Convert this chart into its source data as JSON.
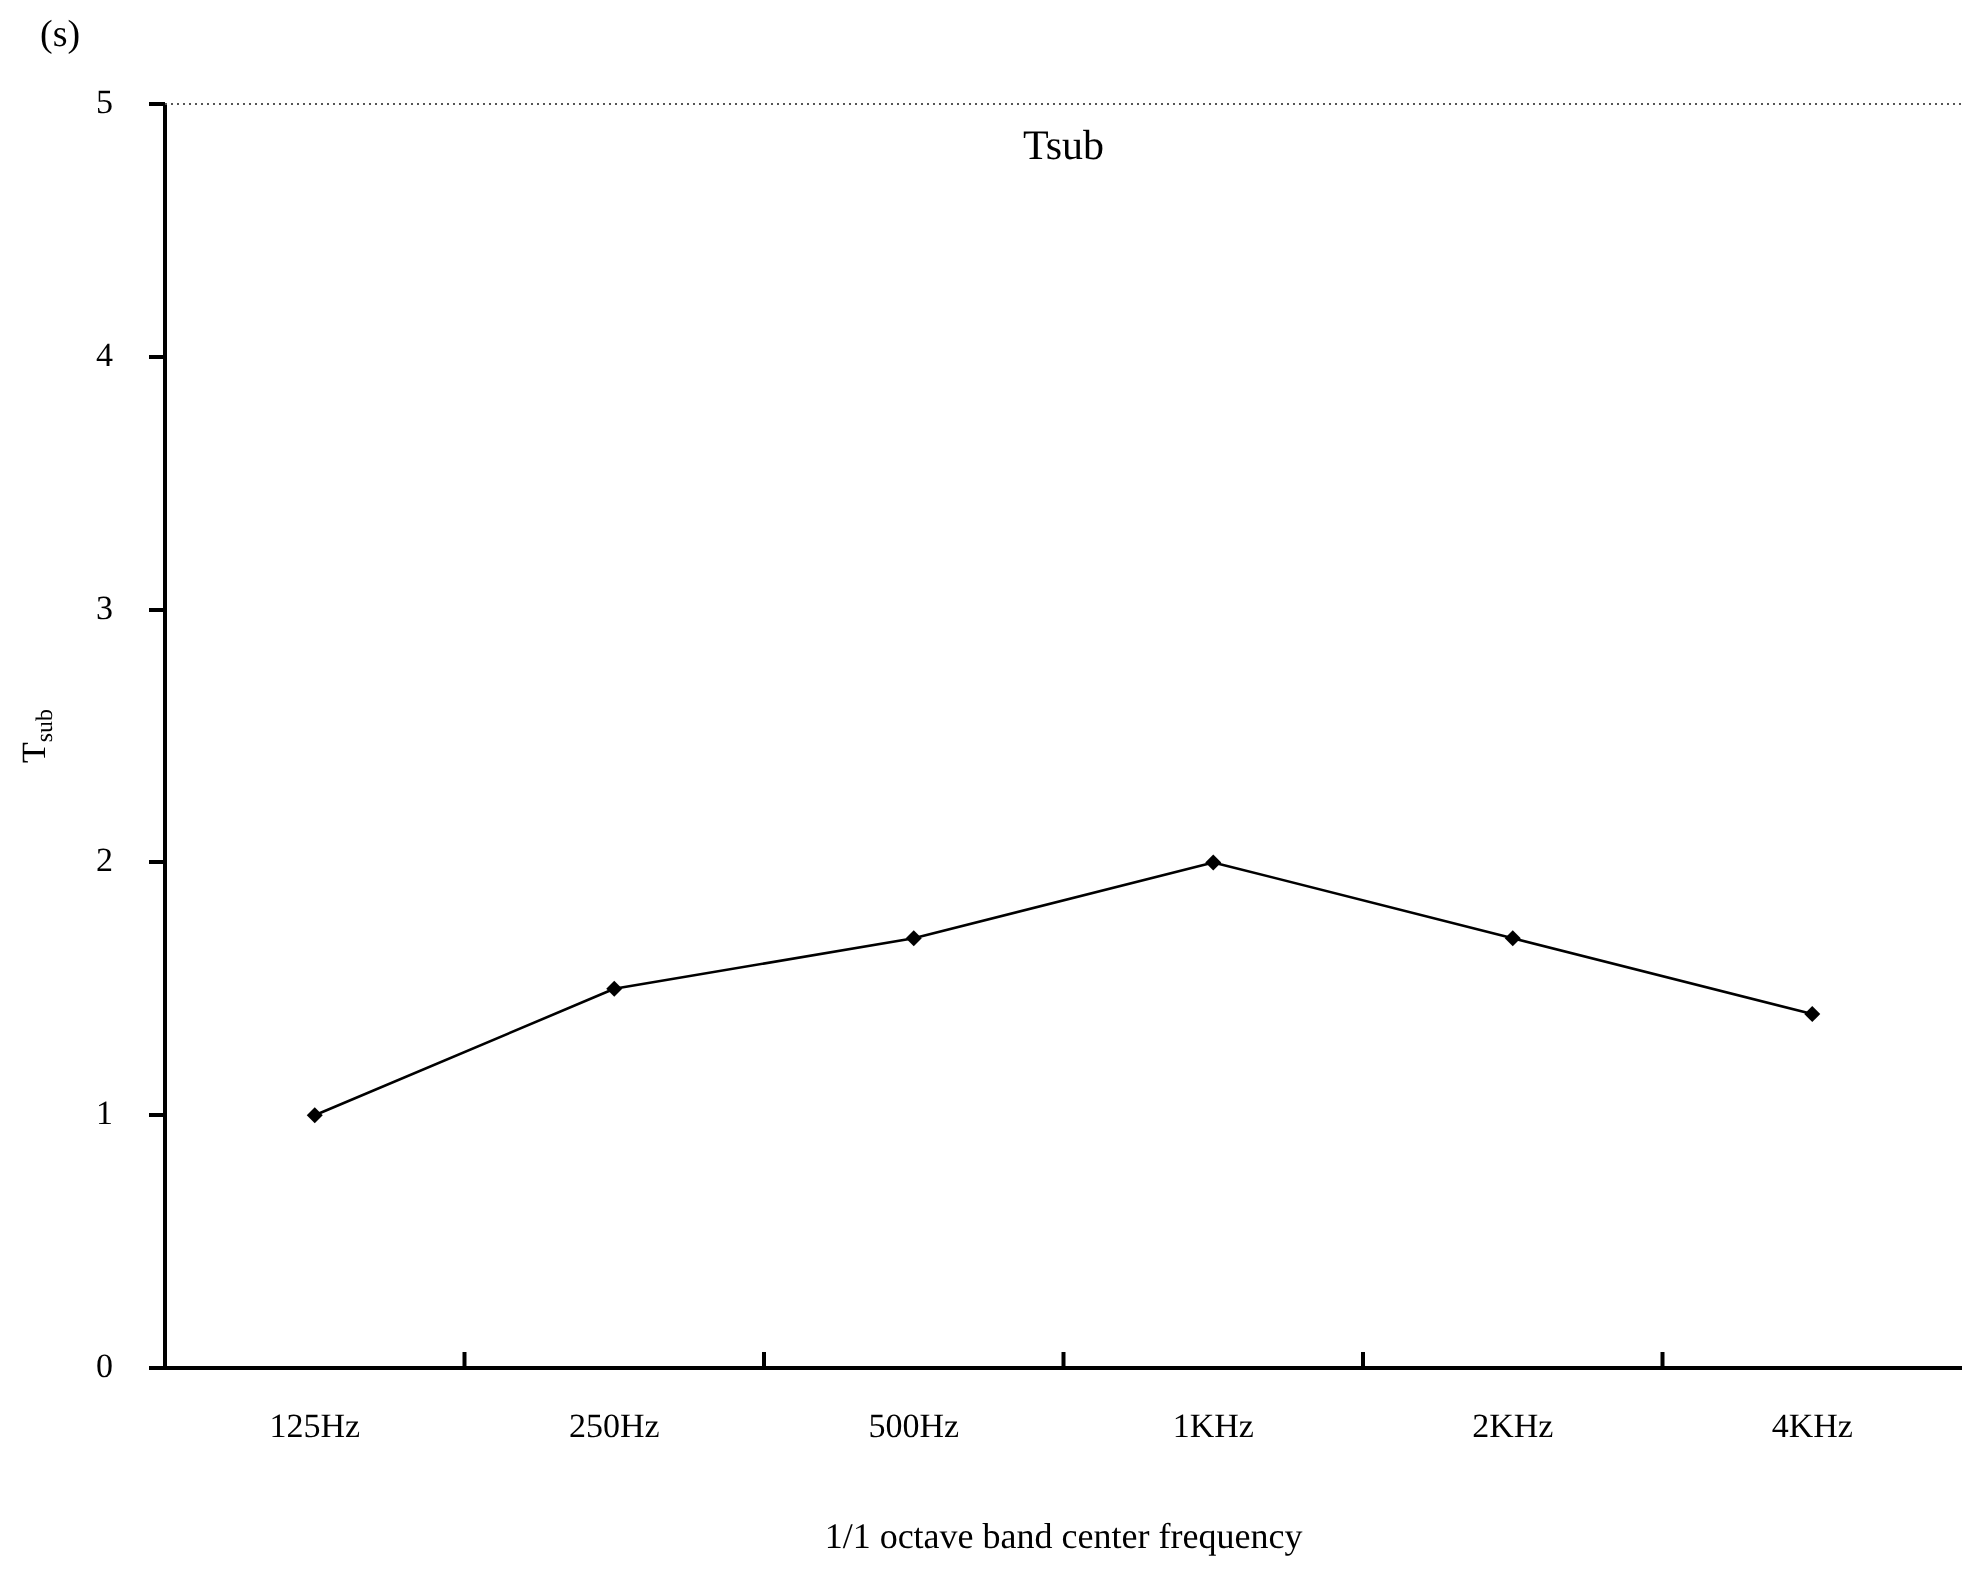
{
  "chart_data": {
    "type": "line",
    "title": "Tsub",
    "xlabel": "1/1 octave band center frequency",
    "ylabel": "T$_{sub}$",
    "annotations": [
      "(s)"
    ],
    "categories": [
      "125Hz",
      "250Hz",
      "500Hz",
      "1KHz",
      "2KHz",
      "4KHz"
    ],
    "series": [
      {
        "color": "#000000",
        "values": [
          1.0,
          1.5,
          1.7,
          2.0,
          1.7,
          1.4
        ]
      }
    ],
    "ylim": [
      0,
      5
    ],
    "yticks": [
      0,
      1,
      2,
      3,
      4,
      5
    ],
    "grid": false,
    "legend": false,
    "marker": "diamond",
    "line_style": "solid"
  }
}
